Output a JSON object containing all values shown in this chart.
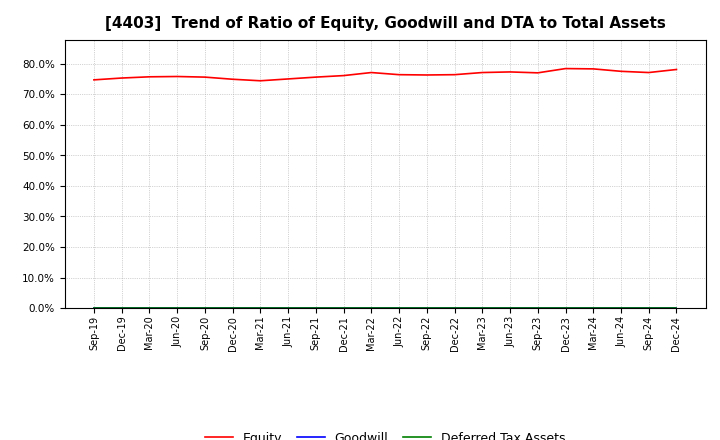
{
  "title": "[4403]  Trend of Ratio of Equity, Goodwill and DTA to Total Assets",
  "x_labels": [
    "Sep-19",
    "Dec-19",
    "Mar-20",
    "Jun-20",
    "Sep-20",
    "Dec-20",
    "Mar-21",
    "Jun-21",
    "Sep-21",
    "Dec-21",
    "Mar-22",
    "Jun-22",
    "Sep-22",
    "Dec-22",
    "Mar-23",
    "Jun-23",
    "Sep-23",
    "Dec-23",
    "Mar-24",
    "Jun-24",
    "Sep-24",
    "Dec-24"
  ],
  "equity": [
    0.748,
    0.754,
    0.758,
    0.759,
    0.757,
    0.75,
    0.745,
    0.751,
    0.757,
    0.762,
    0.772,
    0.765,
    0.764,
    0.765,
    0.772,
    0.774,
    0.771,
    0.785,
    0.784,
    0.776,
    0.772,
    0.782
  ],
  "goodwill": [
    0.0,
    0.0,
    0.0,
    0.0,
    0.0,
    0.0,
    0.0,
    0.0,
    0.0,
    0.0,
    0.0,
    0.0,
    0.0,
    0.0,
    0.0,
    0.0,
    0.0,
    0.0,
    0.0,
    0.0,
    0.0,
    0.0
  ],
  "dta": [
    0.0,
    0.0,
    0.0,
    0.0,
    0.0,
    0.0,
    0.0,
    0.0,
    0.0,
    0.0,
    0.0,
    0.0,
    0.0,
    0.0,
    0.0,
    0.0,
    0.0,
    0.0,
    0.0,
    0.0,
    0.0,
    0.0
  ],
  "equity_color": "#FF0000",
  "goodwill_color": "#0000FF",
  "dta_color": "#008000",
  "ylim": [
    0.0,
    0.88
  ],
  "yticks": [
    0.0,
    0.1,
    0.2,
    0.3,
    0.4,
    0.5,
    0.6,
    0.7,
    0.8
  ],
  "background_color": "#FFFFFF",
  "plot_bg_color": "#FFFFFF",
  "grid_color": "#AAAAAA",
  "title_fontsize": 11,
  "legend_labels": [
    "Equity",
    "Goodwill",
    "Deferred Tax Assets"
  ]
}
